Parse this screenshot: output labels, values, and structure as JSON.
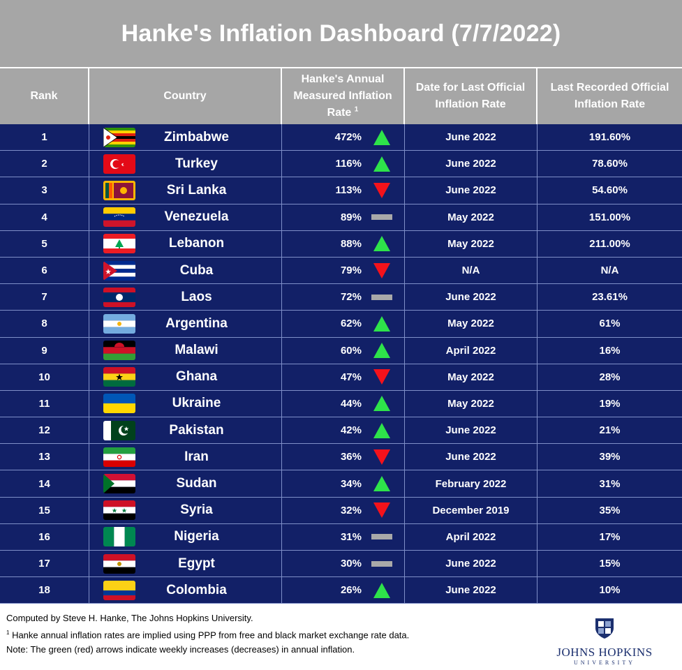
{
  "title": "Hanke's Inflation Dashboard (7/7/2022)",
  "headers": {
    "rank": "Rank",
    "country": "Country",
    "hanke_line1": "Hanke's Annual",
    "hanke_line2": "Measured Inflation",
    "hanke_line3": "Rate",
    "hanke_sup": "1",
    "date_line1": "Date for Last Official",
    "date_line2": "Inflation Rate",
    "last_line1": "Last Recorded Official",
    "last_line2": "Inflation Rate"
  },
  "colors": {
    "row_bg": "#122067",
    "header_bg": "#a6a6a6",
    "up": "#2ee34a",
    "down": "#f4121b",
    "flat": "#a9a9a9"
  },
  "chart_data": {
    "type": "table",
    "title": "Hanke's Inflation Dashboard (7/7/2022)",
    "columns": [
      "Rank",
      "Country",
      "Hanke's Annual Measured Inflation Rate",
      "Date for Last Official Inflation Rate",
      "Last Recorded Official Inflation Rate"
    ],
    "rows": [
      {
        "rank": "1",
        "country": "Zimbabwe",
        "flag": "zimbabwe",
        "hanke": "472%",
        "trend": "up",
        "date": "June 2022",
        "official": "191.60%"
      },
      {
        "rank": "2",
        "country": "Turkey",
        "flag": "turkey",
        "hanke": "116%",
        "trend": "up",
        "date": "June 2022",
        "official": "78.60%"
      },
      {
        "rank": "3",
        "country": "Sri Lanka",
        "flag": "srilanka",
        "hanke": "113%",
        "trend": "down",
        "date": "June 2022",
        "official": "54.60%"
      },
      {
        "rank": "4",
        "country": "Venezuela",
        "flag": "venezuela",
        "hanke": "89%",
        "trend": "flat",
        "date": "May 2022",
        "official": "151.00%"
      },
      {
        "rank": "5",
        "country": "Lebanon",
        "flag": "lebanon",
        "hanke": "88%",
        "trend": "up",
        "date": "May 2022",
        "official": "211.00%"
      },
      {
        "rank": "6",
        "country": "Cuba",
        "flag": "cuba",
        "hanke": "79%",
        "trend": "down",
        "date": "N/A",
        "official": "N/A"
      },
      {
        "rank": "7",
        "country": "Laos",
        "flag": "laos",
        "hanke": "72%",
        "trend": "flat",
        "date": "June 2022",
        "official": "23.61%"
      },
      {
        "rank": "8",
        "country": "Argentina",
        "flag": "argentina",
        "hanke": "62%",
        "trend": "up",
        "date": "May 2022",
        "official": "61%"
      },
      {
        "rank": "9",
        "country": "Malawi",
        "flag": "malawi",
        "hanke": "60%",
        "trend": "up",
        "date": "April 2022",
        "official": "16%"
      },
      {
        "rank": "10",
        "country": "Ghana",
        "flag": "ghana",
        "hanke": "47%",
        "trend": "down",
        "date": "May 2022",
        "official": "28%"
      },
      {
        "rank": "11",
        "country": "Ukraine",
        "flag": "ukraine",
        "hanke": "44%",
        "trend": "up",
        "date": "May 2022",
        "official": "19%"
      },
      {
        "rank": "12",
        "country": "Pakistan",
        "flag": "pakistan",
        "hanke": "42%",
        "trend": "up",
        "date": "June 2022",
        "official": "21%"
      },
      {
        "rank": "13",
        "country": "Iran",
        "flag": "iran",
        "hanke": "36%",
        "trend": "down",
        "date": "June 2022",
        "official": "39%"
      },
      {
        "rank": "14",
        "country": "Sudan",
        "flag": "sudan",
        "hanke": "34%",
        "trend": "up",
        "date": "February 2022",
        "official": "31%"
      },
      {
        "rank": "15",
        "country": "Syria",
        "flag": "syria",
        "hanke": "32%",
        "trend": "down",
        "date": "December 2019",
        "official": "35%"
      },
      {
        "rank": "16",
        "country": "Nigeria",
        "flag": "nigeria",
        "hanke": "31%",
        "trend": "flat",
        "date": "April 2022",
        "official": "17%"
      },
      {
        "rank": "17",
        "country": "Egypt",
        "flag": "egypt",
        "hanke": "30%",
        "trend": "flat",
        "date": "June 2022",
        "official": "15%"
      },
      {
        "rank": "18",
        "country": "Colombia",
        "flag": "colombia",
        "hanke": "26%",
        "trend": "up",
        "date": "June 2022",
        "official": "10%"
      }
    ]
  },
  "footer": {
    "line1": "Computed by Steve H. Hanke, The Johns Hopkins University.",
    "line2_sup": "1",
    "line2": " Hanke annual inflation rates are implied using PPP from free and black market exchange rate data.",
    "line3": "Note: The green (red) arrows indicate weekly increases (decreases) in annual inflation.",
    "logo_name": "JOHNS HOPKINS",
    "logo_sub": "UNIVERSITY"
  }
}
